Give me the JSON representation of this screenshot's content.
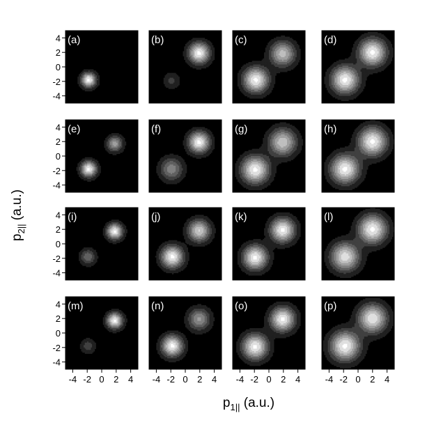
{
  "chart_data": {
    "type": "heatmap",
    "layout": {
      "rows": 4,
      "cols": 4
    },
    "xlabel": {
      "main": "p",
      "sub": "1||",
      "unit": " (a.u.)"
    },
    "ylabel": {
      "main": "p",
      "sub": "2||",
      "unit": " (a.u.)"
    },
    "xlim": [
      -5,
      5
    ],
    "ylim": [
      -5,
      5
    ],
    "xticks": [
      -4,
      -2,
      0,
      2,
      4
    ],
    "yticks": [
      -4,
      -2,
      0,
      2,
      4
    ],
    "xtick_labels": [
      "-4",
      "-2",
      "0",
      "2",
      "4"
    ],
    "ytick_labels": [
      "-4",
      "-2",
      "0",
      "2",
      "4"
    ],
    "colormap": "grayscale, black background, white peaks",
    "panels": [
      {
        "label": "(a)",
        "peaks": [
          {
            "x": -1.8,
            "y": -1.8,
            "intensity": 1.0,
            "sigma": 0.7
          }
        ]
      },
      {
        "label": "(b)",
        "peaks": [
          {
            "x": 1.9,
            "y": 1.9,
            "intensity": 1.0,
            "sigma": 1.0
          },
          {
            "x": -1.9,
            "y": -1.9,
            "intensity": 0.25,
            "sigma": 0.8
          }
        ]
      },
      {
        "label": "(c)",
        "peaks": [
          {
            "x": -1.8,
            "y": -1.8,
            "intensity": 1.0,
            "sigma": 1.2
          },
          {
            "x": 1.9,
            "y": 1.8,
            "intensity": 0.78,
            "sigma": 1.2
          }
        ]
      },
      {
        "label": "(d)",
        "peaks": [
          {
            "x": -1.8,
            "y": -1.8,
            "intensity": 1.0,
            "sigma": 1.3
          },
          {
            "x": 2.0,
            "y": 2.0,
            "intensity": 1.0,
            "sigma": 1.3
          }
        ]
      },
      {
        "label": "(e)",
        "peaks": [
          {
            "x": -1.8,
            "y": -1.8,
            "intensity": 1.0,
            "sigma": 0.75
          },
          {
            "x": 1.8,
            "y": 1.7,
            "intensity": 0.65,
            "sigma": 0.75
          }
        ]
      },
      {
        "label": "(f)",
        "peaks": [
          {
            "x": 1.9,
            "y": 1.9,
            "intensity": 1.0,
            "sigma": 1.0
          },
          {
            "x": -1.9,
            "y": -1.8,
            "intensity": 0.55,
            "sigma": 1.1
          }
        ]
      },
      {
        "label": "(g)",
        "peaks": [
          {
            "x": -1.9,
            "y": -1.9,
            "intensity": 1.0,
            "sigma": 1.3
          },
          {
            "x": 1.9,
            "y": 1.9,
            "intensity": 0.82,
            "sigma": 1.3
          }
        ]
      },
      {
        "label": "(h)",
        "peaks": [
          {
            "x": -1.8,
            "y": -1.8,
            "intensity": 1.0,
            "sigma": 1.35
          },
          {
            "x": 2.0,
            "y": 2.0,
            "intensity": 1.0,
            "sigma": 1.35
          }
        ]
      },
      {
        "label": "(i)",
        "peaks": [
          {
            "x": 1.8,
            "y": 1.7,
            "intensity": 1.0,
            "sigma": 0.75
          },
          {
            "x": -1.9,
            "y": -1.8,
            "intensity": 0.45,
            "sigma": 0.75
          }
        ]
      },
      {
        "label": "(j)",
        "peaks": [
          {
            "x": -1.8,
            "y": -1.8,
            "intensity": 1.0,
            "sigma": 1.05
          },
          {
            "x": 1.9,
            "y": 1.8,
            "intensity": 0.85,
            "sigma": 1.05
          }
        ]
      },
      {
        "label": "(k)",
        "peaks": [
          {
            "x": -1.9,
            "y": -1.9,
            "intensity": 1.0,
            "sigma": 1.15
          },
          {
            "x": 1.9,
            "y": 1.9,
            "intensity": 1.0,
            "sigma": 1.15
          }
        ]
      },
      {
        "label": "(l)",
        "peaks": [
          {
            "x": 2.0,
            "y": 2.0,
            "intensity": 1.0,
            "sigma": 1.35
          },
          {
            "x": -1.8,
            "y": -1.8,
            "intensity": 0.92,
            "sigma": 1.35
          }
        ]
      },
      {
        "label": "(m)",
        "peaks": [
          {
            "x": 1.8,
            "y": 1.7,
            "intensity": 1.0,
            "sigma": 0.75
          },
          {
            "x": -1.9,
            "y": -1.8,
            "intensity": 0.3,
            "sigma": 0.7
          }
        ]
      },
      {
        "label": "(n)",
        "peaks": [
          {
            "x": -1.8,
            "y": -1.8,
            "intensity": 1.0,
            "sigma": 1.0
          },
          {
            "x": 1.9,
            "y": 1.9,
            "intensity": 0.62,
            "sigma": 1.05
          }
        ]
      },
      {
        "label": "(o)",
        "peaks": [
          {
            "x": -1.9,
            "y": -1.9,
            "intensity": 1.0,
            "sigma": 1.2
          },
          {
            "x": 1.9,
            "y": 1.9,
            "intensity": 1.0,
            "sigma": 1.15
          }
        ]
      },
      {
        "label": "(p)",
        "peaks": [
          {
            "x": -1.8,
            "y": -1.8,
            "intensity": 1.0,
            "sigma": 1.4
          },
          {
            "x": 2.0,
            "y": 2.0,
            "intensity": 0.95,
            "sigma": 1.35
          }
        ]
      }
    ]
  }
}
